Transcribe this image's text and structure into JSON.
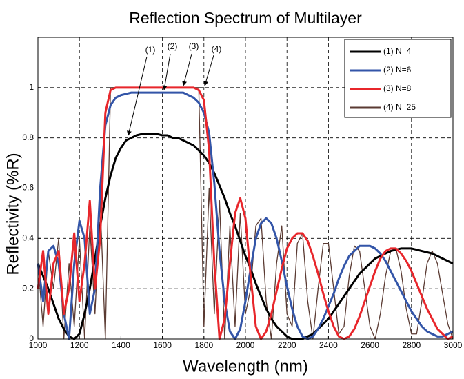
{
  "chart_data": {
    "type": "line",
    "title": "Reflection Spectrum of Multilayer",
    "xlabel": "Wavelength (nm)",
    "ylabel": "Reflectivity (%R)",
    "xlim": [
      1000,
      3000
    ],
    "ylim": [
      0,
      1.2
    ],
    "xticks": [
      1000,
      1200,
      1400,
      1600,
      1800,
      2000,
      2200,
      2400,
      2600,
      2800,
      3000
    ],
    "yticks": [
      0,
      0.2,
      0.4,
      0.6,
      0.8,
      1
    ],
    "grid": true,
    "legend": "upper right",
    "annotations": [
      "(1)",
      "(2)",
      "(3)",
      "(4)"
    ],
    "x": [
      1000,
      1025,
      1050,
      1075,
      1100,
      1125,
      1150,
      1175,
      1200,
      1225,
      1250,
      1275,
      1300,
      1325,
      1350,
      1375,
      1400,
      1425,
      1450,
      1475,
      1500,
      1525,
      1550,
      1575,
      1600,
      1625,
      1650,
      1675,
      1700,
      1725,
      1750,
      1775,
      1800,
      1825,
      1850,
      1875,
      1900,
      1925,
      1950,
      1975,
      2000,
      2025,
      2050,
      2075,
      2100,
      2125,
      2150,
      2175,
      2200,
      2225,
      2250,
      2275,
      2300,
      2325,
      2350,
      2375,
      2400,
      2425,
      2450,
      2475,
      2500,
      2525,
      2550,
      2575,
      2600,
      2625,
      2650,
      2675,
      2700,
      2725,
      2750,
      2775,
      2800,
      2825,
      2850,
      2875,
      2900,
      2925,
      2950,
      2975,
      3000
    ],
    "series": [
      {
        "name": "(1) N=4",
        "color": "#000000",
        "values": [
          0.3,
          0.25,
          0.2,
          0.14,
          0.08,
          0.04,
          0.01,
          0,
          0.02,
          0.1,
          0.2,
          0.32,
          0.45,
          0.56,
          0.65,
          0.72,
          0.76,
          0.79,
          0.8,
          0.81,
          0.815,
          0.815,
          0.815,
          0.815,
          0.81,
          0.81,
          0.8,
          0.8,
          0.79,
          0.78,
          0.77,
          0.75,
          0.73,
          0.7,
          0.66,
          0.61,
          0.56,
          0.5,
          0.45,
          0.39,
          0.33,
          0.28,
          0.22,
          0.17,
          0.12,
          0.08,
          0.05,
          0.03,
          0.01,
          0,
          0,
          0,
          0.01,
          0.02,
          0.04,
          0.06,
          0.08,
          0.11,
          0.14,
          0.17,
          0.2,
          0.23,
          0.26,
          0.28,
          0.3,
          0.32,
          0.33,
          0.34,
          0.35,
          0.355,
          0.36,
          0.36,
          0.36,
          0.355,
          0.35,
          0.345,
          0.34,
          0.33,
          0.32,
          0.31,
          0.3
        ]
      },
      {
        "name": "(2) N=6",
        "color": "#3355a8",
        "values": [
          0.3,
          0.15,
          0.35,
          0.37,
          0.3,
          0.1,
          0,
          0.3,
          0.47,
          0.4,
          0.1,
          0.2,
          0.6,
          0.85,
          0.93,
          0.96,
          0.97,
          0.975,
          0.98,
          0.98,
          0.98,
          0.98,
          0.98,
          0.98,
          0.98,
          0.98,
          0.98,
          0.98,
          0.98,
          0.97,
          0.96,
          0.94,
          0.9,
          0.82,
          0.62,
          0.35,
          0.15,
          0.03,
          0,
          0.04,
          0.15,
          0.28,
          0.4,
          0.46,
          0.48,
          0.46,
          0.4,
          0.31,
          0.21,
          0.12,
          0.05,
          0.01,
          0,
          0.01,
          0.04,
          0.08,
          0.13,
          0.18,
          0.24,
          0.29,
          0.33,
          0.35,
          0.37,
          0.37,
          0.37,
          0.36,
          0.34,
          0.31,
          0.27,
          0.23,
          0.19,
          0.15,
          0.11,
          0.08,
          0.05,
          0.03,
          0.02,
          0.01,
          0.01,
          0.02,
          0.03
        ]
      },
      {
        "name": "(3) N=8",
        "color": "#e8262b",
        "values": [
          0.2,
          0.35,
          0.1,
          0.3,
          0.35,
          0.1,
          0.2,
          0.42,
          0.15,
          0.3,
          0.55,
          0.2,
          0.4,
          0.9,
          0.99,
          1,
          1,
          1,
          1,
          1,
          1,
          1,
          1,
          1,
          1,
          1,
          1,
          1,
          1,
          1,
          1,
          0.99,
          0.95,
          0.75,
          0.3,
          0,
          0.08,
          0.3,
          0.5,
          0.56,
          0.48,
          0.25,
          0.05,
          0,
          0.03,
          0.1,
          0.19,
          0.28,
          0.36,
          0.4,
          0.42,
          0.42,
          0.39,
          0.33,
          0.26,
          0.18,
          0.11,
          0.05,
          0.01,
          0,
          0.01,
          0.04,
          0.09,
          0.15,
          0.21,
          0.27,
          0.32,
          0.35,
          0.36,
          0.36,
          0.34,
          0.31,
          0.27,
          0.22,
          0.17,
          0.12,
          0.08,
          0.04,
          0.02,
          0,
          0.01
        ]
      },
      {
        "name": "(4) N=25",
        "color": "#5a3a32",
        "values": [
          0.3,
          0.05,
          0.35,
          0.2,
          0.4,
          0,
          0.3,
          0.05,
          0.4,
          0,
          0.45,
          0.1,
          0.55,
          0,
          1,
          1,
          1,
          1,
          1,
          1,
          1,
          1,
          1,
          1,
          1,
          1,
          1,
          1,
          1,
          1,
          1,
          1,
          0.05,
          0.6,
          0.1,
          0.55,
          0,
          0.45,
          0.05,
          0.5,
          0.1,
          0.2,
          0.45,
          0.48,
          0.15,
          0,
          0.3,
          0.45,
          0.1,
          0.05,
          0.38,
          0.42,
          0.15,
          0,
          0.2,
          0.38,
          0.38,
          0.2,
          0.02,
          0.05,
          0.25,
          0.37,
          0.35,
          0.2,
          0.05,
          0,
          0.1,
          0.25,
          0.35,
          0.36,
          0.27,
          0.12,
          0.02,
          0.02,
          0.15,
          0.3,
          0.35,
          0.3,
          0.18,
          0.06,
          0
        ]
      }
    ]
  }
}
